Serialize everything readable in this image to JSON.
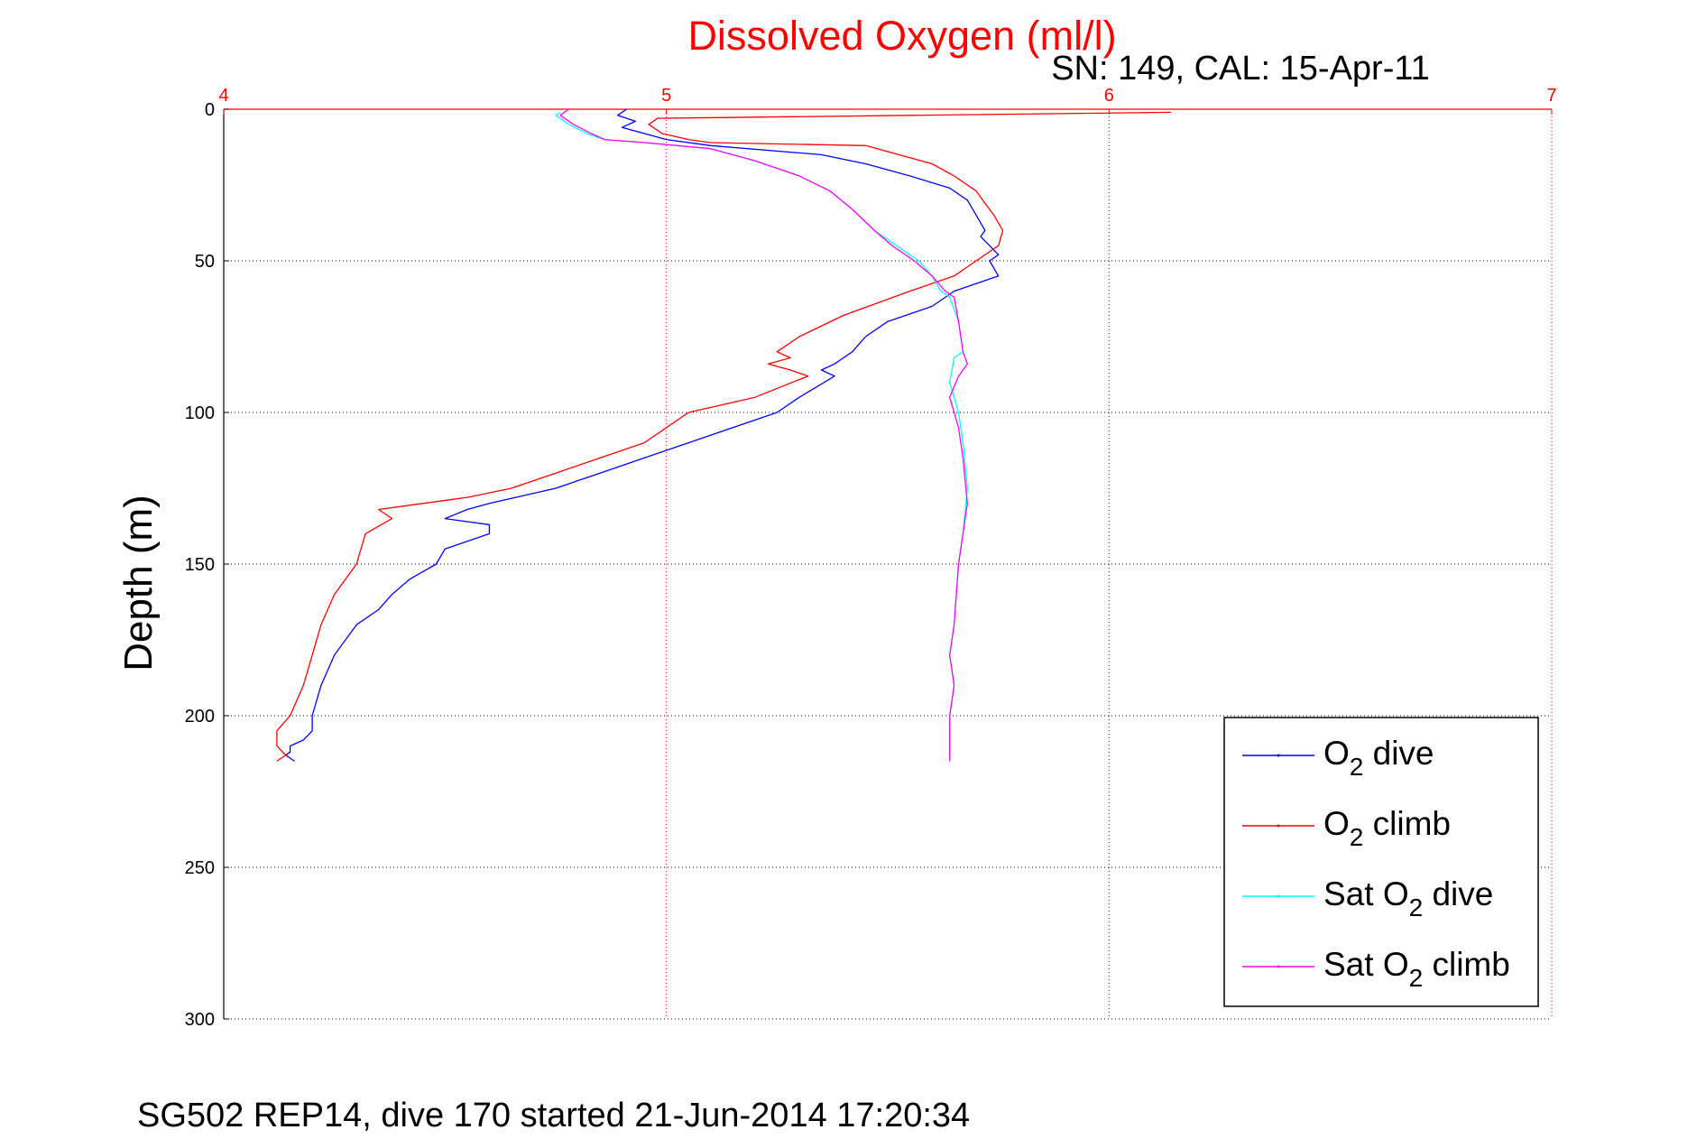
{
  "chart_data": {
    "type": "line",
    "title": "Dissolved Oxygen (ml/l)",
    "subtitle": "SN: 149, CAL: 15-Apr-11",
    "ylabel": "Depth (m)",
    "footer": "SG502 REP14, dive 170 started 21-Jun-2014 17:20:34",
    "xlim": [
      4,
      7
    ],
    "ylim": [
      0,
      300
    ],
    "y_reversed": true,
    "x_axis_position": "top",
    "x_ticks": [
      "4",
      "5",
      "6",
      "7"
    ],
    "y_ticks": [
      "0",
      "50",
      "100",
      "150",
      "200",
      "250",
      "300"
    ],
    "grid": true,
    "legend_position": "bottom-right",
    "colors": {
      "title": "#ff0000",
      "x_axis": "#ff0000",
      "y_axis": "#000000",
      "grid_x": "#ff0000",
      "grid_y": "#000000"
    },
    "series": [
      {
        "name": "O2 dive",
        "legend_main": "O",
        "legend_sub": "2",
        "legend_rest": " dive",
        "color": "#0000ff",
        "x": [
          4.91,
          4.89,
          4.93,
          4.9,
          4.95,
          5.0,
          5.1,
          5.35,
          5.45,
          5.55,
          5.64,
          5.68,
          5.7,
          5.72,
          5.71,
          5.73,
          5.75,
          5.73,
          5.75,
          5.65,
          5.6,
          5.5,
          5.45,
          5.42,
          5.4,
          5.38,
          5.35,
          5.38,
          5.3,
          5.25,
          5.15,
          5.05,
          4.95,
          4.85,
          4.75,
          4.6,
          4.55,
          4.5,
          4.6,
          4.6,
          4.5,
          4.48,
          4.42,
          4.38,
          4.35,
          4.3,
          4.25,
          4.22,
          4.2,
          4.2,
          4.18,
          4.15,
          4.15,
          4.14,
          4.15,
          4.16
        ],
        "y": [
          0,
          2,
          4,
          6,
          8,
          10,
          12,
          15,
          18,
          22,
          26,
          30,
          35,
          40,
          42,
          45,
          48,
          50,
          55,
          60,
          65,
          70,
          75,
          80,
          82,
          84,
          86,
          88,
          95,
          100,
          105,
          110,
          115,
          120,
          125,
          130,
          132,
          135,
          137,
          140,
          145,
          150,
          155,
          160,
          165,
          170,
          180,
          190,
          200,
          205,
          208,
          210,
          212,
          213,
          214,
          215
        ]
      },
      {
        "name": "O2 climb",
        "legend_main": "O",
        "legend_sub": "2",
        "legend_rest": " climb",
        "color": "#ff0000",
        "x": [
          6.14,
          4.98,
          4.96,
          4.99,
          5.05,
          5.1,
          5.45,
          5.6,
          5.65,
          5.7,
          5.72,
          5.74,
          5.76,
          5.75,
          5.7,
          5.65,
          5.55,
          5.4,
          5.3,
          5.25,
          5.28,
          5.23,
          5.28,
          5.32,
          5.2,
          5.05,
          5.0,
          4.95,
          4.85,
          4.75,
          4.65,
          4.55,
          4.45,
          4.35,
          4.38,
          4.32,
          4.3,
          4.25,
          4.22,
          4.2,
          4.18,
          4.15,
          4.12,
          4.12,
          4.14,
          4.12
        ],
        "y": [
          1,
          3,
          5,
          8,
          10,
          11,
          12,
          18,
          22,
          27,
          31,
          35,
          40,
          45,
          50,
          55,
          60,
          68,
          75,
          80,
          82,
          84,
          86,
          88,
          95,
          100,
          105,
          110,
          115,
          120,
          125,
          128,
          130,
          132,
          135,
          140,
          150,
          160,
          170,
          180,
          190,
          200,
          205,
          210,
          213,
          215
        ]
      },
      {
        "name": "Sat O2 dive",
        "legend_main": "Sat O",
        "legend_sub": "2",
        "legend_rest": " dive",
        "color": "#00ffff",
        "x": [
          4.76,
          4.75,
          4.78,
          4.82,
          4.86,
          4.95,
          5.1,
          5.2,
          5.3,
          5.37,
          5.42,
          5.47,
          5.52,
          5.57,
          5.6,
          5.62,
          5.64,
          5.66,
          5.67,
          5.65,
          5.64,
          5.66,
          5.67,
          5.68,
          5.67,
          5.66,
          5.65,
          5.64,
          5.65,
          5.64,
          5.64
        ],
        "y": [
          1,
          2,
          5,
          8,
          10,
          11,
          13,
          17,
          22,
          27,
          33,
          40,
          45,
          50,
          55,
          60,
          62,
          70,
          80,
          82,
          90,
          100,
          110,
          125,
          140,
          150,
          170,
          180,
          190,
          200,
          215
        ]
      },
      {
        "name": "Sat O2 climb",
        "legend_main": "Sat O",
        "legend_sub": "2",
        "legend_rest": " climb",
        "color": "#ff00ff",
        "x": [
          4.78,
          4.76,
          4.79,
          4.83,
          4.86,
          4.95,
          5.1,
          5.2,
          5.3,
          5.37,
          5.42,
          5.47,
          5.51,
          5.56,
          5.6,
          5.63,
          5.65,
          5.66,
          5.67,
          5.68,
          5.66,
          5.64,
          5.66,
          5.67,
          5.68,
          5.67,
          5.66,
          5.65,
          5.64,
          5.65,
          5.64,
          5.64
        ],
        "y": [
          0,
          2,
          5,
          8,
          10,
          11,
          13,
          17,
          22,
          27,
          33,
          40,
          45,
          50,
          55,
          60,
          62,
          70,
          80,
          84,
          88,
          95,
          105,
          115,
          130,
          140,
          150,
          170,
          180,
          190,
          200,
          215
        ]
      }
    ]
  }
}
